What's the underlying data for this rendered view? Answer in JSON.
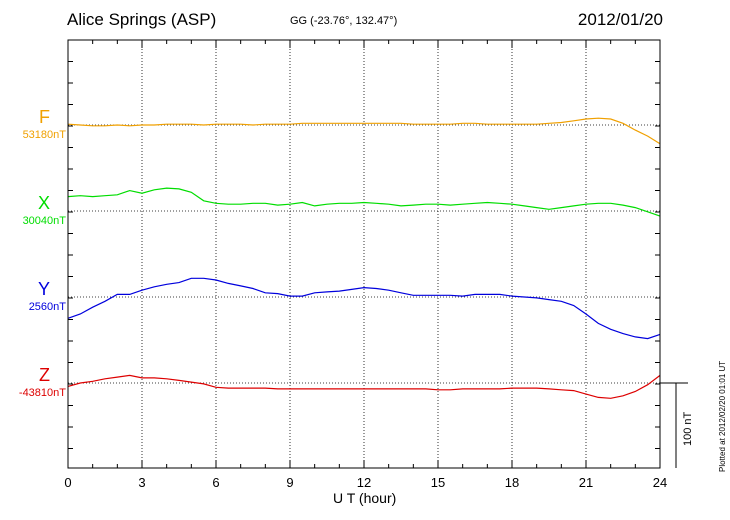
{
  "header": {
    "station": "Alice Springs (ASP)",
    "coords": "GG (-23.76°, 132.47°)",
    "date": "2012/01/20"
  },
  "footer": {
    "plotted": "Plotted at 2012/02/20 01:01  UT"
  },
  "colors": {
    "F": "#f0a000",
    "X": "#00dd00",
    "Y": "#0000dd",
    "Z": "#dd0000",
    "axis": "#000000"
  },
  "chart_data": {
    "type": "line",
    "title": "Alice Springs (ASP)",
    "xlabel": "U T (hour)",
    "ylabel": "",
    "xlim": [
      0,
      24
    ],
    "xticks": [
      "0",
      "3",
      "6",
      "9",
      "12",
      "15",
      "18",
      "21",
      "24"
    ],
    "grid": true,
    "scale_bar": {
      "label": "100 nT",
      "value_nT": 100
    },
    "x": [
      0,
      0.5,
      1,
      1.5,
      2,
      2.5,
      3,
      3.5,
      4,
      4.5,
      5,
      5.5,
      6,
      6.5,
      7,
      7.5,
      8,
      8.5,
      9,
      9.5,
      10,
      10.5,
      11,
      11.5,
      12,
      12.5,
      13,
      13.5,
      14,
      14.5,
      15,
      15.5,
      16,
      16.5,
      17,
      17.5,
      18,
      18.5,
      19,
      19.5,
      20,
      20.5,
      21,
      21.5,
      22,
      22.5,
      23,
      23.5,
      24
    ],
    "series": [
      {
        "name": "F",
        "baseline_label": "53180nT",
        "values": [
          1,
          0,
          -1,
          -1,
          0,
          -1,
          0,
          0,
          1,
          1,
          1,
          0,
          1,
          1,
          1,
          0,
          1,
          1,
          1,
          2,
          2,
          2,
          2,
          2,
          2,
          2,
          2,
          2,
          1,
          1,
          1,
          1,
          2,
          2,
          1,
          1,
          1,
          1,
          1,
          2,
          3,
          5,
          7,
          8,
          7,
          2,
          -6,
          -13,
          -22
        ]
      },
      {
        "name": "X",
        "baseline_label": "30040nT",
        "values": [
          17,
          18,
          17,
          18,
          19,
          24,
          21,
          25,
          27,
          26,
          22,
          12,
          9,
          8,
          8,
          9,
          9,
          7,
          8,
          10,
          6,
          8,
          9,
          9,
          10,
          9,
          8,
          6,
          7,
          8,
          8,
          7,
          8,
          9,
          10,
          9,
          8,
          6,
          4,
          2,
          4,
          6,
          8,
          9,
          9,
          7,
          4,
          -1,
          -6
        ]
      },
      {
        "name": "Y",
        "baseline_label": "2560nT",
        "values": [
          -25,
          -20,
          -12,
          -5,
          3,
          3,
          8,
          12,
          15,
          17,
          22,
          22,
          20,
          16,
          13,
          10,
          5,
          4,
          1,
          1,
          5,
          6,
          7,
          9,
          11,
          10,
          8,
          5,
          2,
          2,
          2,
          2,
          1,
          3,
          3,
          3,
          1,
          0,
          -1,
          -3,
          -5,
          -10,
          -20,
          -31,
          -38,
          -43,
          -47,
          -49,
          -44
        ]
      },
      {
        "name": "Z",
        "baseline_label": "-43810nT",
        "values": [
          -4,
          0,
          2,
          5,
          7,
          9,
          6,
          6,
          5,
          3,
          1,
          -1,
          -5,
          -6,
          -6,
          -6,
          -6,
          -7,
          -7,
          -7,
          -7,
          -7,
          -7,
          -7,
          -7,
          -7,
          -7,
          -7,
          -7,
          -7,
          -8,
          -8,
          -7,
          -7,
          -7,
          -7,
          -6,
          -6,
          -6,
          -7,
          -8,
          -9,
          -13,
          -17,
          -18,
          -15,
          -10,
          -2,
          9
        ]
      }
    ]
  }
}
